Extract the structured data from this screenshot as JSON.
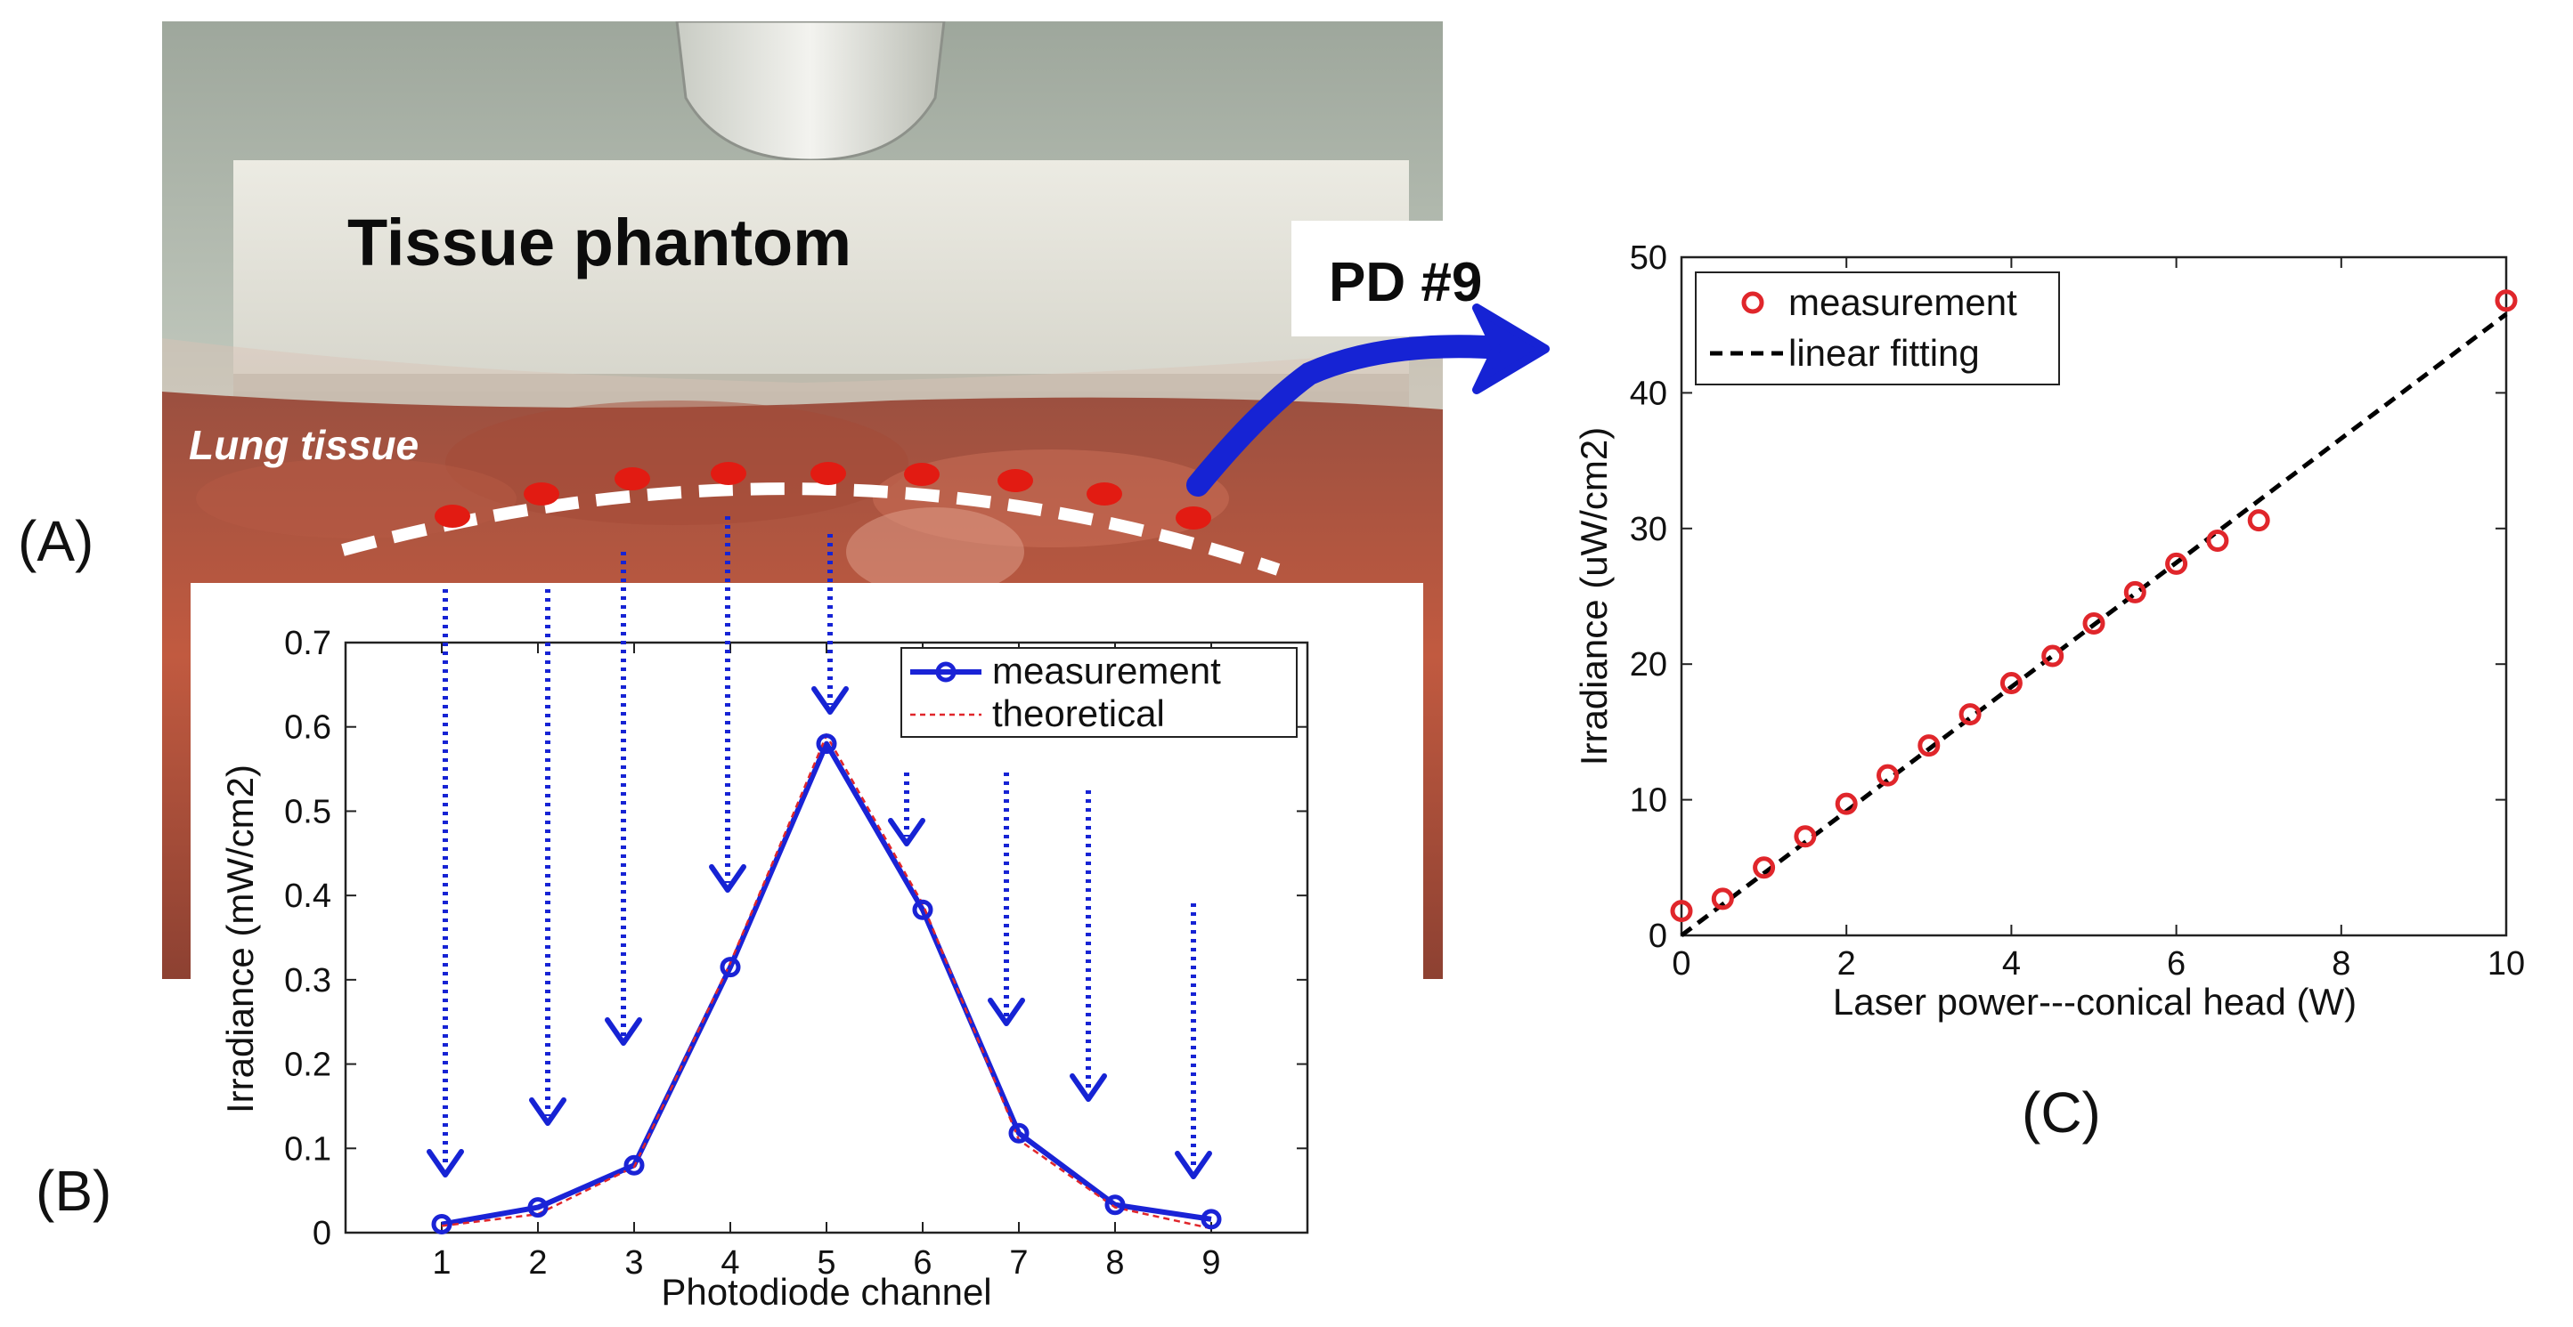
{
  "panels": {
    "a": {
      "letter": "(A)"
    },
    "b": {
      "letter": "(B)"
    },
    "c": {
      "letter": "(C)"
    }
  },
  "photo": {
    "title": "Tissue phantom",
    "subtitle": "Lung tissue",
    "callout": "PD #9",
    "colors": {
      "background": "#b7bfb3",
      "phantom": "#e6e5dc",
      "tissue": "#b8503a",
      "dots": "#e21b12",
      "arrow": "#1623d4"
    }
  },
  "chart_data": [
    {
      "type": "line",
      "panel": "B",
      "xlabel": "Photodiode channel",
      "ylabel": "Irradiance (mW/cm2)",
      "xlim": [
        0,
        10
      ],
      "ylim": [
        0,
        0.7
      ],
      "xticks": [
        "1",
        "2",
        "3",
        "4",
        "5",
        "6",
        "7",
        "8",
        "9"
      ],
      "yticks": [
        "0",
        "0.1",
        "0.2",
        "0.3",
        "0.4",
        "0.5",
        "0.6",
        "0.7"
      ],
      "x": [
        1,
        2,
        3,
        4,
        5,
        6,
        7,
        8,
        9
      ],
      "series": [
        {
          "name": "measurement",
          "style": "solid-circle",
          "color": "#1a23d6",
          "values": [
            0.01,
            0.03,
            0.08,
            0.315,
            0.58,
            0.383,
            0.118,
            0.033,
            0.016
          ]
        },
        {
          "name": "theoretical",
          "style": "dashed",
          "color": "#e0262b",
          "values": [
            0.008,
            0.022,
            0.078,
            0.32,
            0.59,
            0.39,
            0.11,
            0.03,
            0.005
          ]
        }
      ],
      "legend": {
        "position": "top-right"
      }
    },
    {
      "type": "scatter",
      "panel": "C",
      "xlabel": "Laser power---conical head (W)",
      "ylabel": "Irradiance (uW/cm2)",
      "xlim": [
        0,
        10
      ],
      "ylim": [
        0,
        50
      ],
      "xticks": [
        "0",
        "2",
        "4",
        "6",
        "8",
        "10"
      ],
      "yticks": [
        "0",
        "10",
        "20",
        "30",
        "40",
        "50"
      ],
      "series": [
        {
          "name": "measurement",
          "style": "circle",
          "color": "#e0262b",
          "x": [
            0,
            0.5,
            1,
            1.5,
            2,
            2.5,
            3,
            3.5,
            4,
            4.5,
            5,
            5.5,
            6,
            6.5,
            7,
            10
          ],
          "values": [
            1.8,
            2.7,
            5.0,
            7.3,
            9.7,
            11.8,
            14.0,
            16.3,
            18.6,
            20.6,
            23.0,
            25.3,
            27.4,
            29.1,
            30.6,
            46.8
          ]
        },
        {
          "name": "linear fitting",
          "style": "dashed",
          "color": "#000000",
          "x": [
            0,
            10
          ],
          "values": [
            0,
            45.8
          ]
        }
      ],
      "legend": {
        "position": "top-left"
      }
    }
  ]
}
